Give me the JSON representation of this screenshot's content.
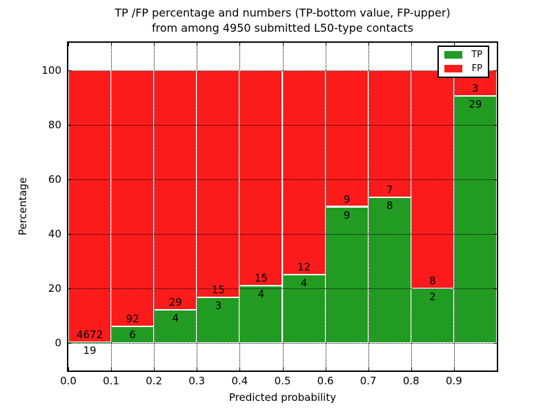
{
  "chart_data": {
    "type": "bar",
    "stacked": true,
    "title": "TP /FP percentage and numbers (TP-bottom value, FP-upper)",
    "subtitle": "from among 4950 submitted L50-type contacts",
    "xlabel": "Predicted probability",
    "ylabel": "Percentage",
    "xlim": [
      0.0,
      1.0
    ],
    "ylim": [
      -10,
      110
    ],
    "bin_width": 0.1,
    "xticks": [
      "0.0",
      "0.1",
      "0.2",
      "0.3",
      "0.4",
      "0.5",
      "0.6",
      "0.7",
      "0.8",
      "0.9"
    ],
    "xtick_values": [
      0.0,
      0.1,
      0.2,
      0.3,
      0.4,
      0.5,
      0.6,
      0.7,
      0.8,
      0.9
    ],
    "yticks": [
      0,
      20,
      40,
      60,
      80,
      100
    ],
    "grid": "dotted",
    "bins": [
      {
        "x0": 0.0,
        "tp": 19,
        "fp": 4672,
        "tp_pct": 0.41,
        "fp_pct": 99.59
      },
      {
        "x0": 0.1,
        "tp": 6,
        "fp": 92,
        "tp_pct": 6.12,
        "fp_pct": 93.88
      },
      {
        "x0": 0.2,
        "tp": 4,
        "fp": 29,
        "tp_pct": 12.12,
        "fp_pct": 87.88
      },
      {
        "x0": 0.3,
        "tp": 3,
        "fp": 15,
        "tp_pct": 16.67,
        "fp_pct": 83.33
      },
      {
        "x0": 0.4,
        "tp": 4,
        "fp": 15,
        "tp_pct": 21.05,
        "fp_pct": 78.95
      },
      {
        "x0": 0.5,
        "tp": 4,
        "fp": 12,
        "tp_pct": 25.0,
        "fp_pct": 75.0
      },
      {
        "x0": 0.6,
        "tp": 9,
        "fp": 9,
        "tp_pct": 50.0,
        "fp_pct": 50.0
      },
      {
        "x0": 0.7,
        "tp": 8,
        "fp": 7,
        "tp_pct": 53.33,
        "fp_pct": 46.67
      },
      {
        "x0": 0.8,
        "tp": 2,
        "fp": 8,
        "tp_pct": 20.0,
        "fp_pct": 80.0
      },
      {
        "x0": 0.9,
        "tp": 29,
        "fp": 3,
        "tp_pct": 90.63,
        "fp_pct": 9.37
      }
    ],
    "legend": {
      "position": "upper right",
      "entries": [
        {
          "label": "TP",
          "color": "#229b22"
        },
        {
          "label": "FP",
          "color": "#fb1b1b"
        }
      ]
    },
    "colors": {
      "tp": "#229b22",
      "fp": "#fb1b1b",
      "bar_edge": "#ffffff",
      "grid": "#000000",
      "spine": "#000000"
    }
  }
}
